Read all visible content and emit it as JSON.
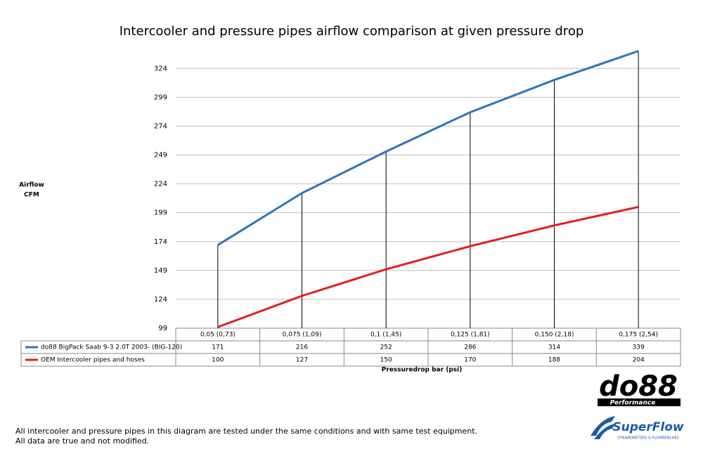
{
  "chart_data": {
    "type": "line",
    "title": "Intercooler and pressure pipes airflow comparison at given pressure drop",
    "ylabel": [
      "Airflow",
      "CFM"
    ],
    "xlabel": "Pressuredrop bar (psi)",
    "categories": [
      "0,05 (0,73)",
      "0,075 (1,09)",
      "0,1 (1,45)",
      "0,125 (1,81)",
      "0,150 (2,18)",
      "0,175 (2,54)"
    ],
    "series": [
      {
        "name": "do88 BigPack Saab 9-3 2.0T 2003- (BIG-120)",
        "color": "#2e75b6",
        "values": [
          171,
          216,
          252,
          286,
          314,
          339
        ]
      },
      {
        "name": "OEM Intercooler pipes and hoses",
        "color": "#e31e24",
        "values": [
          100,
          127,
          150,
          170,
          188,
          204
        ]
      }
    ],
    "ylim": [
      99,
      340
    ],
    "yticks": [
      99,
      124,
      149,
      174,
      199,
      224,
      249,
      274,
      299,
      324
    ],
    "grid": true,
    "drop_lines": true
  },
  "footnotes": [
    "All intercooler and pressure pipes in this diagram are tested under the same conditions and with same test equipment.",
    "All data are true and not modified."
  ],
  "logos": {
    "do88": "do88",
    "do88_sub": "Performance",
    "superflow": "SuperFlow",
    "superflow_sub": "DYNAMOMETERS & FLOWBENCHES"
  }
}
